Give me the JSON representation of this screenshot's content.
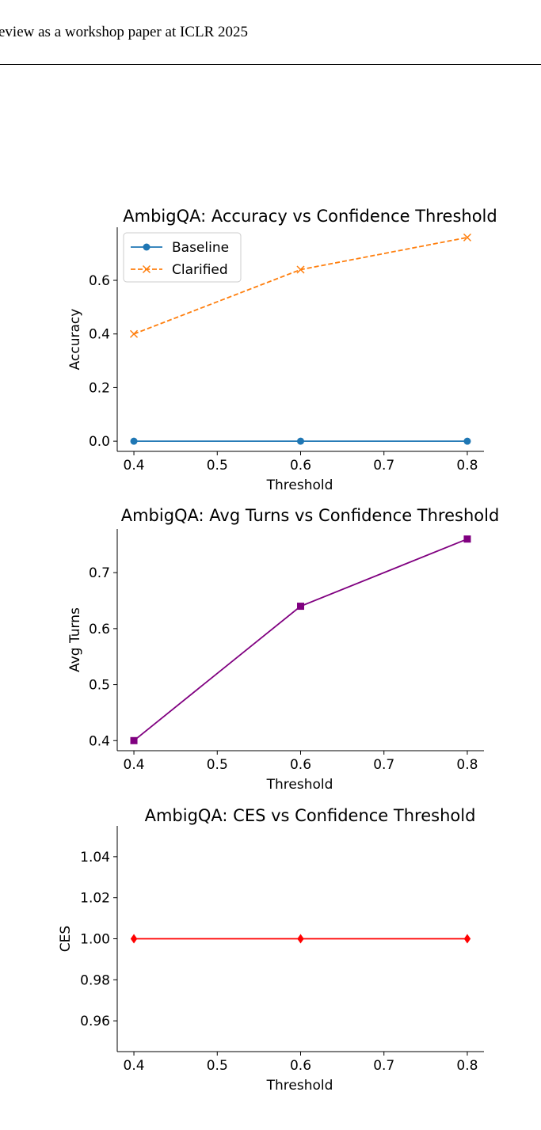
{
  "header": {
    "text": "eview as a workshop paper at ICLR 2025"
  },
  "chart_data": [
    {
      "type": "line",
      "title": "AmbigQA: Accuracy vs Confidence Threshold",
      "xlabel": "Threshold",
      "ylabel": "Accuracy",
      "x": [
        0.4,
        0.6,
        0.8
      ],
      "xlim": [
        0.38,
        0.82
      ],
      "ylim": [
        -0.038,
        0.798
      ],
      "xticks": [
        0.4,
        0.5,
        0.6,
        0.7,
        0.8
      ],
      "xtick_labels": [
        "0.4",
        "0.5",
        "0.6",
        "0.7",
        "0.8"
      ],
      "yticks": [
        0.0,
        0.2,
        0.4,
        0.6
      ],
      "ytick_labels": [
        "0.0",
        "0.2",
        "0.4",
        "0.6"
      ],
      "legend": "top-left",
      "grid": false,
      "series": [
        {
          "name": "Baseline",
          "values": [
            0.0,
            0.0,
            0.0
          ],
          "color": "#1f77b4",
          "marker": "circle",
          "line": "solid"
        },
        {
          "name": "Clarified",
          "values": [
            0.4,
            0.64,
            0.76
          ],
          "color": "#ff7f0e",
          "marker": "x",
          "line": "dashed"
        }
      ]
    },
    {
      "type": "line",
      "title": "AmbigQA: Avg Turns vs Confidence Threshold",
      "xlabel": "Threshold",
      "ylabel": "Avg Turns",
      "x": [
        0.4,
        0.6,
        0.8
      ],
      "xlim": [
        0.38,
        0.82
      ],
      "ylim": [
        0.382,
        0.778
      ],
      "xticks": [
        0.4,
        0.5,
        0.6,
        0.7,
        0.8
      ],
      "xtick_labels": [
        "0.4",
        "0.5",
        "0.6",
        "0.7",
        "0.8"
      ],
      "yticks": [
        0.4,
        0.5,
        0.6,
        0.7
      ],
      "ytick_labels": [
        "0.4",
        "0.5",
        "0.6",
        "0.7"
      ],
      "grid": false,
      "series": [
        {
          "values": [
            0.4,
            0.64,
            0.76
          ],
          "color": "#800080",
          "marker": "square",
          "line": "solid"
        }
      ]
    },
    {
      "type": "line",
      "title": "AmbigQA: CES vs Confidence Threshold",
      "xlabel": "Threshold",
      "ylabel": "CES",
      "x": [
        0.4,
        0.6,
        0.8
      ],
      "xlim": [
        0.38,
        0.82
      ],
      "ylim": [
        0.945,
        1.055
      ],
      "xticks": [
        0.4,
        0.5,
        0.6,
        0.7,
        0.8
      ],
      "xtick_labels": [
        "0.4",
        "0.5",
        "0.6",
        "0.7",
        "0.8"
      ],
      "yticks": [
        0.96,
        0.98,
        1.0,
        1.02,
        1.04
      ],
      "ytick_labels": [
        "0.96",
        "0.98",
        "1.00",
        "1.02",
        "1.04"
      ],
      "grid": false,
      "series": [
        {
          "values": [
            1.0,
            1.0,
            1.0
          ],
          "color": "#ff0000",
          "marker": "diamond",
          "line": "solid"
        }
      ]
    }
  ]
}
